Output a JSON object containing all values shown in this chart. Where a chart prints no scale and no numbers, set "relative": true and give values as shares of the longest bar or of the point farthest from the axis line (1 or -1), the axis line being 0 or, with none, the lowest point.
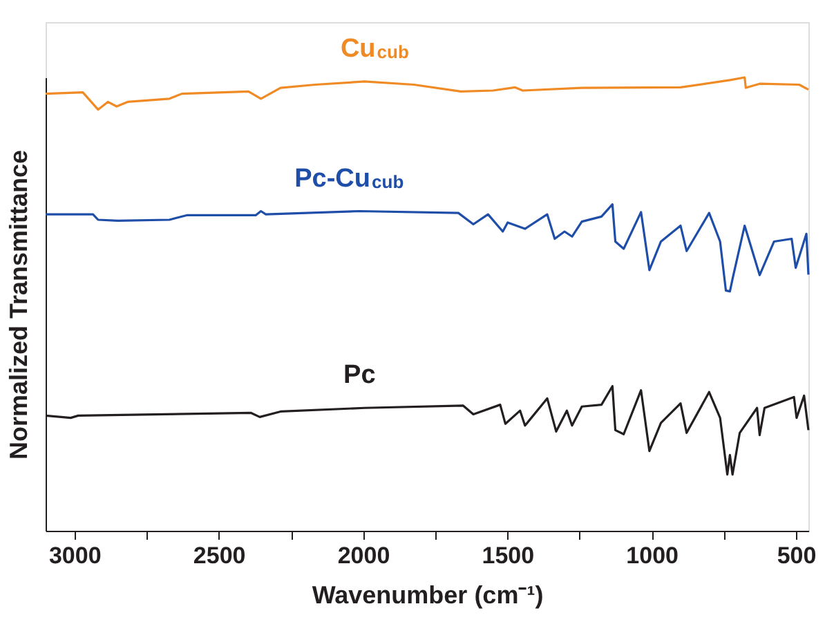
{
  "chart_data": {
    "type": "line",
    "relative": true,
    "xlabel": "Wavenumber (cm⁻¹)",
    "ylabel": "Normalized Transmittance",
    "xlim": [
      3100,
      457
    ],
    "xticks": [
      3000,
      {
        "value": 2750,
        "label": null
      },
      2500,
      {
        "value": 2250,
        "label": null
      },
      2000,
      {
        "value": 1750,
        "label": null
      },
      1500,
      {
        "value": 1250,
        "label": null
      },
      1000,
      {
        "value": 750,
        "label": null
      },
      500
    ],
    "grid": false,
    "legend": false,
    "line_style": "solid",
    "marker": "none",
    "series": [
      {
        "name": "Cu$_{cub}$",
        "color": "#f08a24",
        "x": [
          3100,
          2971,
          2918,
          2884,
          2854,
          2816,
          2671,
          2628,
          2397,
          2354,
          2286,
          2166,
          1995,
          1824,
          1661,
          1550,
          1473,
          1447,
          1242,
          900,
          729,
          678,
          674,
          626,
          489,
          457
        ],
        "values": [
          0.964,
          0.967,
          0.929,
          0.946,
          0.936,
          0.946,
          0.953,
          0.964,
          0.969,
          0.953,
          0.977,
          0.984,
          0.991,
          0.984,
          0.969,
          0.971,
          0.978,
          0.971,
          0.977,
          0.978,
          0.994,
          1.0,
          0.977,
          0.986,
          0.984,
          0.973
        ]
      },
      {
        "name": "Pc-Cu$_{cub}$",
        "color": "#1f4ea8",
        "x": [
          3100,
          2936,
          2918,
          2850,
          2671,
          2611,
          2372,
          2354,
          2337,
          2013,
          1670,
          1618,
          1567,
          1516,
          1499,
          1439,
          1362,
          1336,
          1302,
          1276,
          1242,
          1174,
          1136,
          1126,
          1097,
          1037,
          1008,
          968,
          900,
          879,
          801,
          763,
          743,
          729,
          719,
          678,
          626,
          576,
          515,
          501,
          464,
          457
        ],
        "values": [
          0.698,
          0.698,
          0.686,
          0.684,
          0.686,
          0.696,
          0.696,
          0.705,
          0.698,
          0.705,
          0.701,
          0.676,
          0.698,
          0.66,
          0.68,
          0.666,
          0.698,
          0.644,
          0.66,
          0.649,
          0.682,
          0.693,
          0.72,
          0.638,
          0.622,
          0.703,
          0.575,
          0.638,
          0.673,
          0.617,
          0.701,
          0.638,
          0.53,
          0.528,
          0.558,
          0.673,
          0.564,
          0.638,
          0.644,
          0.58,
          0.655,
          0.565
        ]
      },
      {
        "name": "Pc",
        "color": "#231f20",
        "x": [
          3100,
          3013,
          2987,
          2388,
          2358,
          2286,
          1995,
          1653,
          1618,
          1525,
          1507,
          1456,
          1439,
          1362,
          1331,
          1294,
          1276,
          1242,
          1174,
          1136,
          1126,
          1097,
          1037,
          1008,
          968,
          900,
          879,
          801,
          763,
          738,
          729,
          720,
          695,
          635,
          626,
          609,
          507,
          498,
          472,
          457
        ],
        "values": [
          0.254,
          0.249,
          0.254,
          0.26,
          0.251,
          0.263,
          0.271,
          0.276,
          0.257,
          0.278,
          0.236,
          0.265,
          0.232,
          0.292,
          0.219,
          0.265,
          0.232,
          0.274,
          0.278,
          0.319,
          0.222,
          0.213,
          0.31,
          0.176,
          0.238,
          0.281,
          0.216,
          0.306,
          0.249,
          0.124,
          0.167,
          0.124,
          0.216,
          0.271,
          0.211,
          0.271,
          0.295,
          0.249,
          0.298,
          0.222
        ]
      }
    ]
  }
}
